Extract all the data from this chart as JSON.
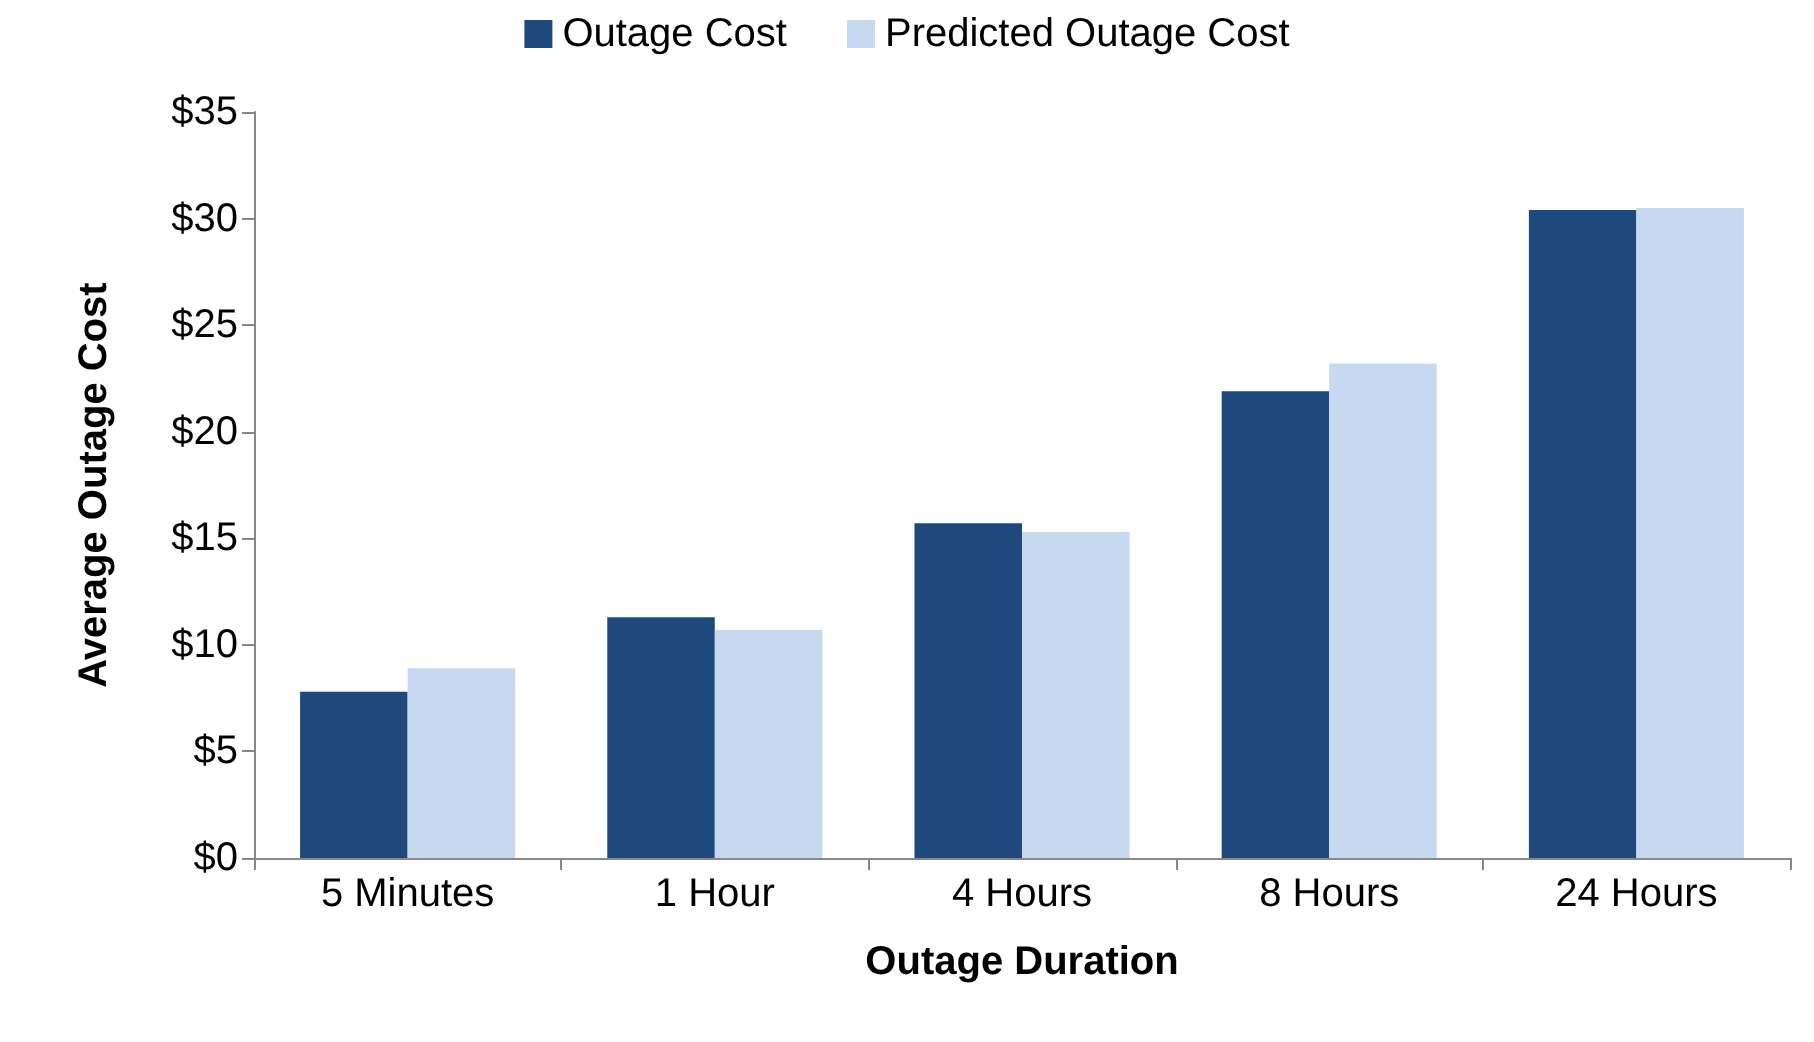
{
  "chart_data": {
    "type": "bar",
    "xlabel": "Outage Duration",
    "ylabel": "Average Outage Cost",
    "categories": [
      "5 Minutes",
      "1 Hour",
      "4 Hours",
      "8 Hours",
      "24 Hours"
    ],
    "series": [
      {
        "name": "Outage Cost",
        "color": "#1f497d",
        "values": [
          7.8,
          11.3,
          15.7,
          21.9,
          30.4
        ]
      },
      {
        "name": "Predicted Outage Cost",
        "color": "#c6d9f1",
        "values": [
          8.9,
          10.7,
          15.3,
          23.2,
          30.5
        ]
      }
    ],
    "ylim": [
      0,
      35
    ],
    "yticks": [
      {
        "value": 0,
        "label": "$0"
      },
      {
        "value": 5,
        "label": "$5"
      },
      {
        "value": 10,
        "label": "$10"
      },
      {
        "value": 15,
        "label": "$15"
      },
      {
        "value": 20,
        "label": "$20"
      },
      {
        "value": 25,
        "label": "$25"
      },
      {
        "value": 30,
        "label": "$30"
      },
      {
        "value": 35,
        "label": "$35"
      }
    ],
    "grid": false,
    "legend": "top"
  }
}
